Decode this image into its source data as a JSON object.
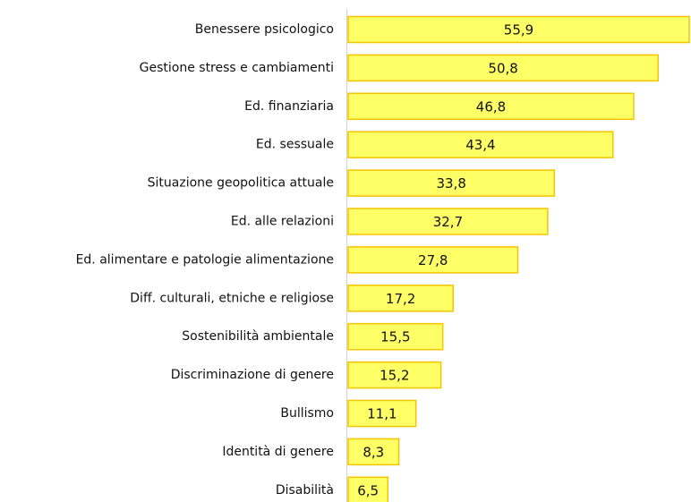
{
  "chart_data": {
    "type": "bar",
    "orientation": "horizontal",
    "categories": [
      "Benessere psicologico",
      "Gestione stress e cambiamenti",
      "Ed. finanziaria",
      "Ed. sessuale",
      "Situazione geopolitica attuale",
      "Ed. alle relazioni",
      "Ed. alimentare e patologie alimentazione",
      "Diff. culturali, etniche e religiose",
      "Sostenibilità ambientale",
      "Discriminazione di genere",
      "Bullismo",
      "Identità di genere",
      "Disabilità"
    ],
    "values": [
      55.9,
      50.8,
      46.8,
      43.4,
      33.8,
      32.7,
      27.8,
      17.2,
      15.5,
      15.2,
      11.1,
      8.3,
      6.5
    ],
    "value_labels": [
      "55,9",
      "50,8",
      "46,8",
      "43,4",
      "33,8",
      "32,7",
      "27,8",
      "17,2",
      "15,5",
      "15,2",
      "11,1",
      "8,3",
      "6,5"
    ],
    "color": "#ffff66",
    "edge_color": "#f5c400"
  }
}
